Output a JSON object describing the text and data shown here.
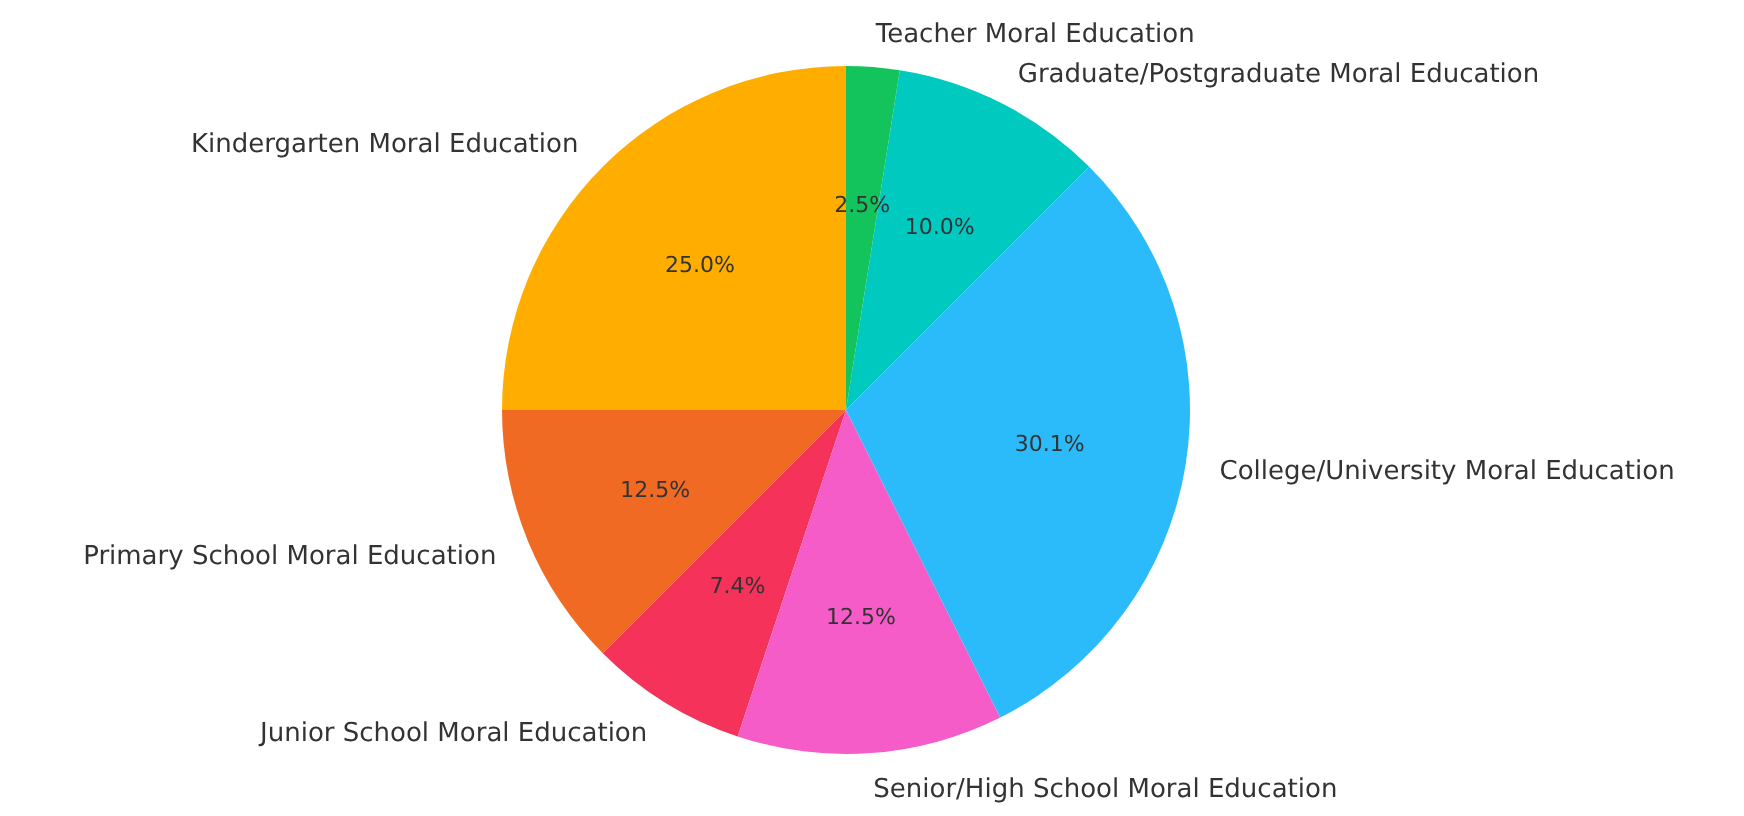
{
  "chart_data": {
    "type": "pie",
    "categories": [
      "Kindergarten Moral Education",
      "Primary School Moral Education",
      "Junior School Moral Education",
      "Senior/High School Moral Education",
      "College/University Moral Education",
      "Graduate/Postgraduate Moral Education",
      "Teacher Moral Education"
    ],
    "values": [
      25.0,
      12.5,
      7.4,
      12.5,
      30.1,
      10.0,
      2.5
    ],
    "value_labels": [
      "25.0%",
      "12.5%",
      "7.4%",
      "12.5%",
      "30.1%",
      "10.0%",
      "2.5%"
    ],
    "colors": [
      "#ffae00",
      "#f06a23",
      "#f5325a",
      "#f55cc8",
      "#2bbbfa",
      "#00c9c0",
      "#13c45c"
    ]
  }
}
